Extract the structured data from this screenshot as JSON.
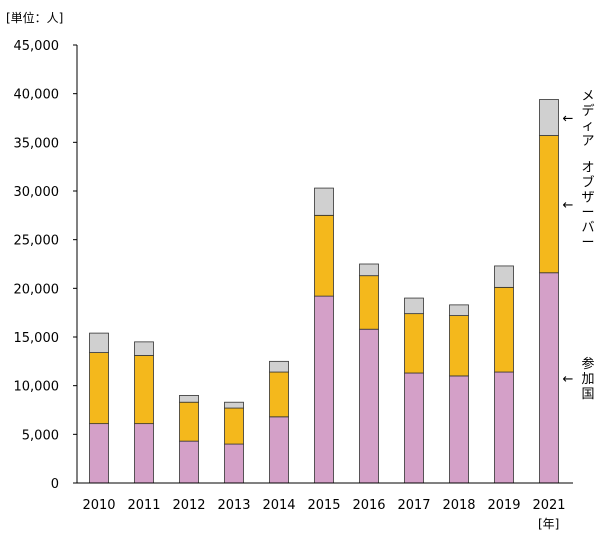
{
  "chart_data": {
    "type": "bar",
    "stacked": true,
    "categories": [
      "2010",
      "2011",
      "2012",
      "2013",
      "2014",
      "2015",
      "2016",
      "2017",
      "2018",
      "2019",
      "2021"
    ],
    "y_unit_label": "[単位：人]",
    "x_unit_label": "[年]",
    "ylim": [
      0,
      45000
    ],
    "y_ticks": [
      0,
      5000,
      10000,
      15000,
      20000,
      25000,
      30000,
      35000,
      40000,
      45000
    ],
    "y_tick_labels": [
      "0",
      "5,000",
      "10,000",
      "15,000",
      "20,000",
      "25,000",
      "30,000",
      "35,000",
      "40,000",
      "45,000"
    ],
    "grid": false,
    "series": [
      {
        "name": "参加国",
        "color": "#d4a0c8",
        "values": [
          6100,
          6100,
          4300,
          4000,
          6800,
          19200,
          15800,
          11300,
          11000,
          11400,
          21600
        ]
      },
      {
        "name": "オブザーバー",
        "color": "#f4b81c",
        "values": [
          7300,
          7000,
          4000,
          3700,
          4600,
          8300,
          5500,
          6100,
          6200,
          8700,
          14100
        ]
      },
      {
        "name": "メディア",
        "color": "#d0d0d0",
        "values": [
          2000,
          1400,
          700,
          600,
          1100,
          2800,
          1200,
          1600,
          1100,
          2200,
          3700
        ]
      }
    ],
    "legend_placement": "right",
    "arrow_glyph": "←"
  }
}
